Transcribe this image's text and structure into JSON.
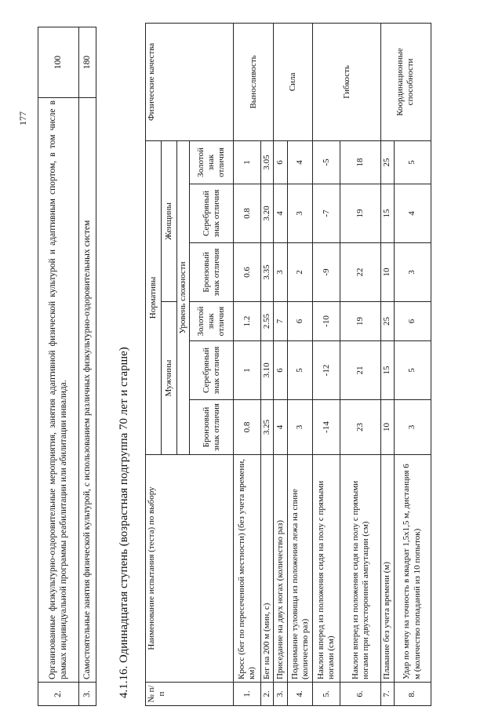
{
  "page_number": "177",
  "top_table": [
    {
      "num": "2.",
      "text": "Организованные физкультурно-оздоровительные мероприятия, занятия адаптивной физической культурой и адаптивным спортом, в том числе в рамках индивидуальной программы реабилитации или абилитации инвалида.",
      "value": "100"
    },
    {
      "num": "3.",
      "text": "Самостоятельные занятия физической культурой, с использованием различных физкультурно-оздоровительных систем",
      "value": "180"
    }
  ],
  "section_title": "4.1.16. Одиннадцатая ступень (возрастная подгруппа 70 лет и старше)",
  "main_table": {
    "headers": {
      "num": "№ п/п",
      "name": "Наименование испытания (теста) по выбору",
      "norms": "Нормативы",
      "men": "Мужчины",
      "women": "Женщины",
      "level": "Уровень сложности",
      "bronze": "Бронзовый знак отличия",
      "silver": "Серебряный знак отличия",
      "gold": "Золотой знак отличия",
      "qualities": "Физические качества"
    },
    "rows": [
      {
        "num": "1.",
        "name": "Кросс (бег по пересеченной местности) (без учета времени, км)",
        "m": [
          "0.8",
          "1",
          "1.2"
        ],
        "w": [
          "0.6",
          "0.8",
          "1"
        ]
      },
      {
        "num": "2.",
        "name": "Бег на 200 м (мин, с)",
        "m": [
          "3.25",
          "3.10",
          "2.55"
        ],
        "w": [
          "3.35",
          "3.20",
          "3.05"
        ]
      },
      {
        "num": "3.",
        "name": "Приседание на двух ногах (количество раз)",
        "m": [
          "4",
          "6",
          "7"
        ],
        "w": [
          "3",
          "4",
          "6"
        ]
      },
      {
        "num": "4.",
        "name": "Поднимание туловища из положения лежа на спине (количество раз)",
        "m": [
          "3",
          "5",
          "6"
        ],
        "w": [
          "2",
          "3",
          "4"
        ]
      },
      {
        "num": "5.",
        "name": "Наклон вперед из положения сидя на полу с прямыми ногами (см)",
        "m": [
          "-14",
          "-12",
          "-10"
        ],
        "w": [
          "-9",
          "-7",
          "-5"
        ]
      },
      {
        "num": "6.",
        "name": "Наклон вперед из положения сидя на полу с прямыми ногами при двухсторонней ампутации (см)",
        "m": [
          "23",
          "21",
          "19"
        ],
        "w": [
          "22",
          "19",
          "18"
        ]
      },
      {
        "num": "7.",
        "name": "Плавание без учета времени (м)",
        "m": [
          "10",
          "15",
          "25"
        ],
        "w": [
          "10",
          "15",
          "25"
        ]
      },
      {
        "num": "8.",
        "name": "Удар по мячу на точность в квадрат 1,5х1,5 м, дистанция 6 м (количество попаданий из 10 попыток)",
        "m": [
          "3",
          "5",
          "6"
        ],
        "w": [
          "3",
          "4",
          "5"
        ]
      }
    ],
    "qualities": [
      "Выносливость",
      "Сила",
      "Гибкость",
      "Координационные способности"
    ]
  }
}
